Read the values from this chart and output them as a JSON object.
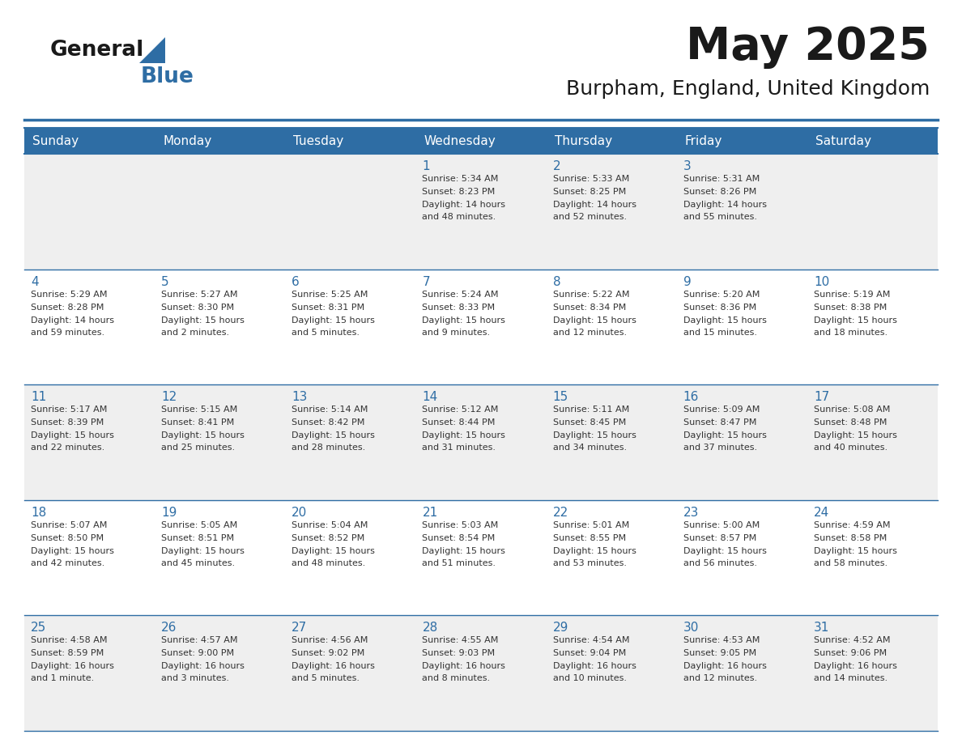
{
  "title": "May 2025",
  "subtitle": "Burpham, England, United Kingdom",
  "header_bg": "#2E6DA4",
  "header_text_color": "#FFFFFF",
  "day_names": [
    "Sunday",
    "Monday",
    "Tuesday",
    "Wednesday",
    "Thursday",
    "Friday",
    "Saturday"
  ],
  "cell_bg_light": "#EFEFEF",
  "cell_bg_white": "#FFFFFF",
  "cell_border_color": "#2E6DA4",
  "day_num_color": "#2E6DA4",
  "text_color": "#333333",
  "logo_general_color": "#1a1a1a",
  "logo_blue_color": "#2E6DA4",
  "days": [
    {
      "date": 1,
      "col": 3,
      "row": 0,
      "sunrise": "5:34 AM",
      "sunset": "8:23 PM",
      "daylight_l1": "Daylight: 14 hours",
      "daylight_l2": "and 48 minutes."
    },
    {
      "date": 2,
      "col": 4,
      "row": 0,
      "sunrise": "5:33 AM",
      "sunset": "8:25 PM",
      "daylight_l1": "Daylight: 14 hours",
      "daylight_l2": "and 52 minutes."
    },
    {
      "date": 3,
      "col": 5,
      "row": 0,
      "sunrise": "5:31 AM",
      "sunset": "8:26 PM",
      "daylight_l1": "Daylight: 14 hours",
      "daylight_l2": "and 55 minutes."
    },
    {
      "date": 4,
      "col": 0,
      "row": 1,
      "sunrise": "5:29 AM",
      "sunset": "8:28 PM",
      "daylight_l1": "Daylight: 14 hours",
      "daylight_l2": "and 59 minutes."
    },
    {
      "date": 5,
      "col": 1,
      "row": 1,
      "sunrise": "5:27 AM",
      "sunset": "8:30 PM",
      "daylight_l1": "Daylight: 15 hours",
      "daylight_l2": "and 2 minutes."
    },
    {
      "date": 6,
      "col": 2,
      "row": 1,
      "sunrise": "5:25 AM",
      "sunset": "8:31 PM",
      "daylight_l1": "Daylight: 15 hours",
      "daylight_l2": "and 5 minutes."
    },
    {
      "date": 7,
      "col": 3,
      "row": 1,
      "sunrise": "5:24 AM",
      "sunset": "8:33 PM",
      "daylight_l1": "Daylight: 15 hours",
      "daylight_l2": "and 9 minutes."
    },
    {
      "date": 8,
      "col": 4,
      "row": 1,
      "sunrise": "5:22 AM",
      "sunset": "8:34 PM",
      "daylight_l1": "Daylight: 15 hours",
      "daylight_l2": "and 12 minutes."
    },
    {
      "date": 9,
      "col": 5,
      "row": 1,
      "sunrise": "5:20 AM",
      "sunset": "8:36 PM",
      "daylight_l1": "Daylight: 15 hours",
      "daylight_l2": "and 15 minutes."
    },
    {
      "date": 10,
      "col": 6,
      "row": 1,
      "sunrise": "5:19 AM",
      "sunset": "8:38 PM",
      "daylight_l1": "Daylight: 15 hours",
      "daylight_l2": "and 18 minutes."
    },
    {
      "date": 11,
      "col": 0,
      "row": 2,
      "sunrise": "5:17 AM",
      "sunset": "8:39 PM",
      "daylight_l1": "Daylight: 15 hours",
      "daylight_l2": "and 22 minutes."
    },
    {
      "date": 12,
      "col": 1,
      "row": 2,
      "sunrise": "5:15 AM",
      "sunset": "8:41 PM",
      "daylight_l1": "Daylight: 15 hours",
      "daylight_l2": "and 25 minutes."
    },
    {
      "date": 13,
      "col": 2,
      "row": 2,
      "sunrise": "5:14 AM",
      "sunset": "8:42 PM",
      "daylight_l1": "Daylight: 15 hours",
      "daylight_l2": "and 28 minutes."
    },
    {
      "date": 14,
      "col": 3,
      "row": 2,
      "sunrise": "5:12 AM",
      "sunset": "8:44 PM",
      "daylight_l1": "Daylight: 15 hours",
      "daylight_l2": "and 31 minutes."
    },
    {
      "date": 15,
      "col": 4,
      "row": 2,
      "sunrise": "5:11 AM",
      "sunset": "8:45 PM",
      "daylight_l1": "Daylight: 15 hours",
      "daylight_l2": "and 34 minutes."
    },
    {
      "date": 16,
      "col": 5,
      "row": 2,
      "sunrise": "5:09 AM",
      "sunset": "8:47 PM",
      "daylight_l1": "Daylight: 15 hours",
      "daylight_l2": "and 37 minutes."
    },
    {
      "date": 17,
      "col": 6,
      "row": 2,
      "sunrise": "5:08 AM",
      "sunset": "8:48 PM",
      "daylight_l1": "Daylight: 15 hours",
      "daylight_l2": "and 40 minutes."
    },
    {
      "date": 18,
      "col": 0,
      "row": 3,
      "sunrise": "5:07 AM",
      "sunset": "8:50 PM",
      "daylight_l1": "Daylight: 15 hours",
      "daylight_l2": "and 42 minutes."
    },
    {
      "date": 19,
      "col": 1,
      "row": 3,
      "sunrise": "5:05 AM",
      "sunset": "8:51 PM",
      "daylight_l1": "Daylight: 15 hours",
      "daylight_l2": "and 45 minutes."
    },
    {
      "date": 20,
      "col": 2,
      "row": 3,
      "sunrise": "5:04 AM",
      "sunset": "8:52 PM",
      "daylight_l1": "Daylight: 15 hours",
      "daylight_l2": "and 48 minutes."
    },
    {
      "date": 21,
      "col": 3,
      "row": 3,
      "sunrise": "5:03 AM",
      "sunset": "8:54 PM",
      "daylight_l1": "Daylight: 15 hours",
      "daylight_l2": "and 51 minutes."
    },
    {
      "date": 22,
      "col": 4,
      "row": 3,
      "sunrise": "5:01 AM",
      "sunset": "8:55 PM",
      "daylight_l1": "Daylight: 15 hours",
      "daylight_l2": "and 53 minutes."
    },
    {
      "date": 23,
      "col": 5,
      "row": 3,
      "sunrise": "5:00 AM",
      "sunset": "8:57 PM",
      "daylight_l1": "Daylight: 15 hours",
      "daylight_l2": "and 56 minutes."
    },
    {
      "date": 24,
      "col": 6,
      "row": 3,
      "sunrise": "4:59 AM",
      "sunset": "8:58 PM",
      "daylight_l1": "Daylight: 15 hours",
      "daylight_l2": "and 58 minutes."
    },
    {
      "date": 25,
      "col": 0,
      "row": 4,
      "sunrise": "4:58 AM",
      "sunset": "8:59 PM",
      "daylight_l1": "Daylight: 16 hours",
      "daylight_l2": "and 1 minute."
    },
    {
      "date": 26,
      "col": 1,
      "row": 4,
      "sunrise": "4:57 AM",
      "sunset": "9:00 PM",
      "daylight_l1": "Daylight: 16 hours",
      "daylight_l2": "and 3 minutes."
    },
    {
      "date": 27,
      "col": 2,
      "row": 4,
      "sunrise": "4:56 AM",
      "sunset": "9:02 PM",
      "daylight_l1": "Daylight: 16 hours",
      "daylight_l2": "and 5 minutes."
    },
    {
      "date": 28,
      "col": 3,
      "row": 4,
      "sunrise": "4:55 AM",
      "sunset": "9:03 PM",
      "daylight_l1": "Daylight: 16 hours",
      "daylight_l2": "and 8 minutes."
    },
    {
      "date": 29,
      "col": 4,
      "row": 4,
      "sunrise": "4:54 AM",
      "sunset": "9:04 PM",
      "daylight_l1": "Daylight: 16 hours",
      "daylight_l2": "and 10 minutes."
    },
    {
      "date": 30,
      "col": 5,
      "row": 4,
      "sunrise": "4:53 AM",
      "sunset": "9:05 PM",
      "daylight_l1": "Daylight: 16 hours",
      "daylight_l2": "and 12 minutes."
    },
    {
      "date": 31,
      "col": 6,
      "row": 4,
      "sunrise": "4:52 AM",
      "sunset": "9:06 PM",
      "daylight_l1": "Daylight: 16 hours",
      "daylight_l2": "and 14 minutes."
    }
  ]
}
